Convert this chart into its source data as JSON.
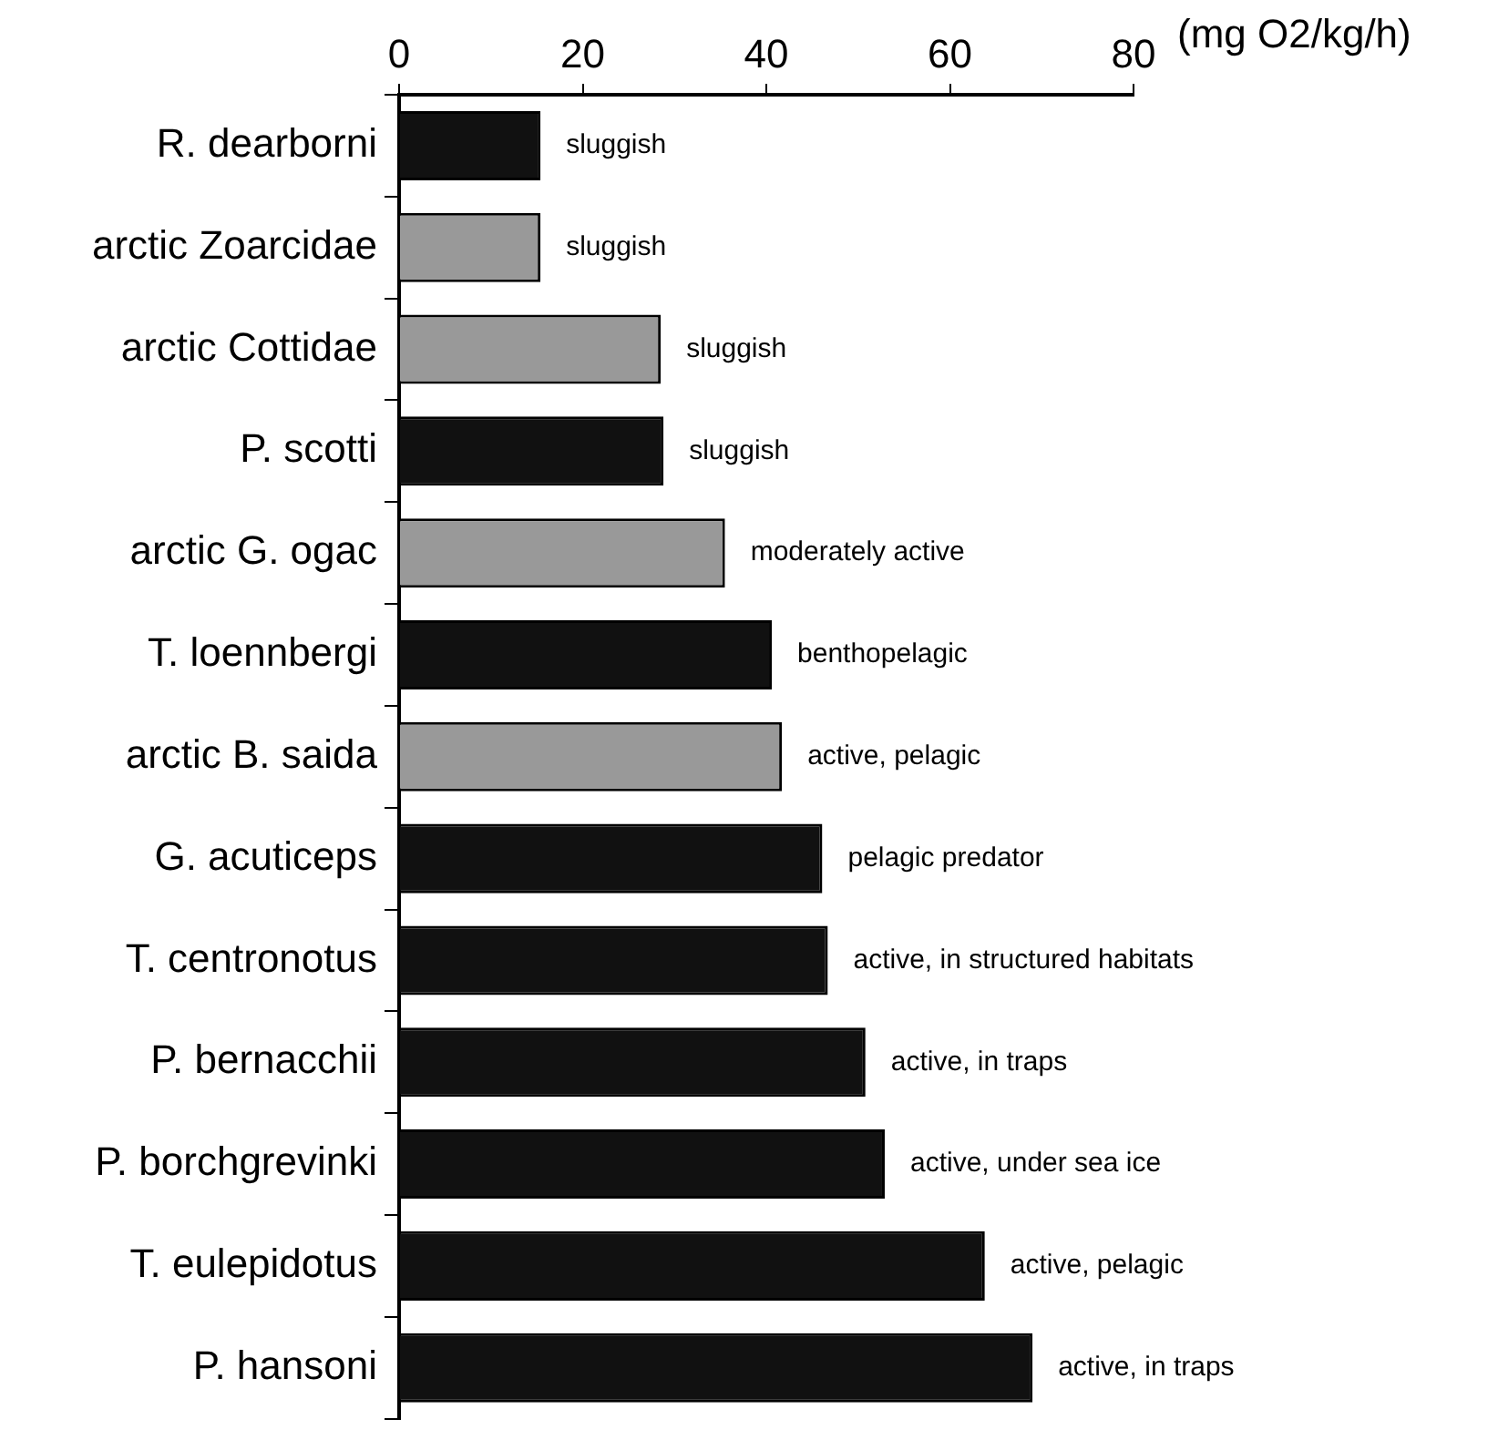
{
  "chart_data": {
    "type": "bar",
    "orientation": "horizontal",
    "xlabel": "(mg O2/kg/h)",
    "categories": [
      "R. dearborni",
      "arctic Zoarcidae",
      "arctic Cottidae",
      "P. scotti",
      "arctic G. ogac",
      "T. loennbergi",
      "arctic B. saida",
      "G. acuticeps",
      "T. centronotus",
      "P. bernacchii",
      "P. borchgrevinki",
      "T. eulepidotus",
      "P. hansoni"
    ],
    "values": [
      15.4,
      15.4,
      28.5,
      28.8,
      35.5,
      40.6,
      41.7,
      46.1,
      46.7,
      50.8,
      52.9,
      63.8,
      69.0
    ],
    "colors": [
      "#111111",
      "#999999",
      "#999999",
      "#111111",
      "#999999",
      "#111111",
      "#999999",
      "#111111",
      "#111111",
      "#111111",
      "#111111",
      "#111111",
      "#111111"
    ],
    "value_labels": [
      "sluggish",
      "sluggish",
      "sluggish",
      "sluggish",
      "moderately active",
      "benthopelagic",
      "active, pelagic",
      "pelagic predator",
      "active, in structured habitats",
      "active, in traps",
      "active, under sea ice",
      "active, pelagic",
      "active, in traps"
    ],
    "xlim": [
      0,
      80
    ],
    "xticks": [
      0,
      20,
      40,
      60,
      80
    ],
    "grid": false,
    "legend": false
  }
}
